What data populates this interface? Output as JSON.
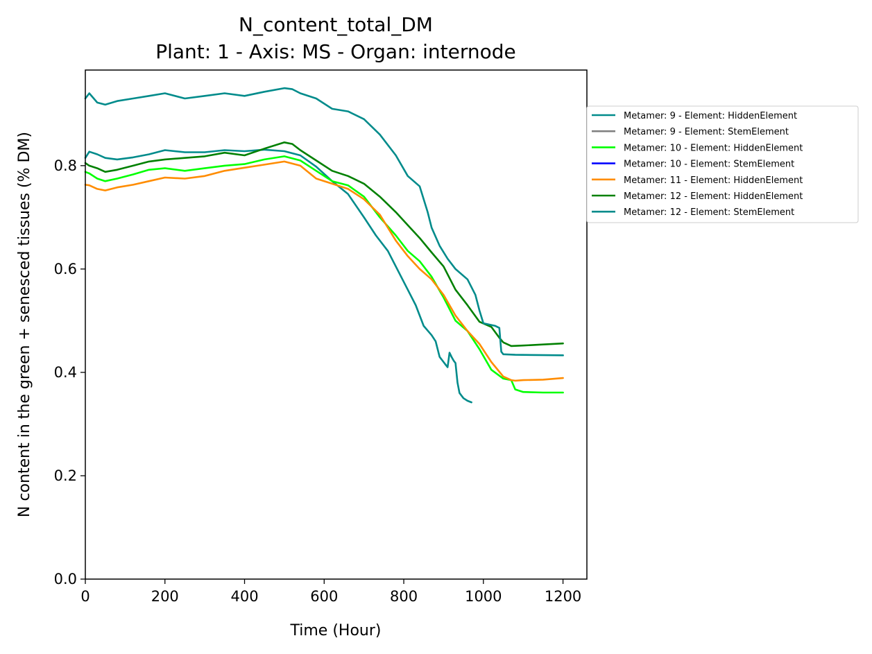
{
  "chart_data": {
    "type": "line",
    "title": "N_content_total_DM",
    "subtitle": "Plant: 1 - Axis: MS - Organ: internode",
    "xlabel": "Time (Hour)",
    "ylabel": "N content in the green + senesced tissues (% DM)",
    "xlim": [
      0,
      1260
    ],
    "ylim": [
      0,
      0.985
    ],
    "xticks": [
      0,
      200,
      400,
      600,
      800,
      1000,
      1200
    ],
    "yticks": [
      0.0,
      0.2,
      0.4,
      0.6,
      0.8
    ],
    "xtick_labels": [
      "0",
      "200",
      "400",
      "600",
      "800",
      "1000",
      "1200"
    ],
    "ytick_labels": [
      "0.0",
      "0.2",
      "0.4",
      "0.6",
      "0.8"
    ],
    "grid": false,
    "legend_position": "outside-right",
    "series": [
      {
        "name": "Metamer: 9 - Element: HiddenElement",
        "color": "#008b8b",
        "x": [
          0,
          10,
          30,
          50,
          80,
          120,
          160,
          200,
          250,
          300,
          350,
          400,
          450,
          500,
          540,
          580,
          620,
          660,
          700,
          730,
          760,
          790,
          810,
          830,
          850,
          870,
          880,
          890,
          900,
          905,
          910,
          915,
          920,
          925,
          930,
          935,
          940,
          950,
          960,
          970
        ],
        "y": [
          0.815,
          0.827,
          0.822,
          0.815,
          0.812,
          0.816,
          0.822,
          0.83,
          0.826,
          0.826,
          0.83,
          0.828,
          0.831,
          0.828,
          0.82,
          0.798,
          0.77,
          0.745,
          0.7,
          0.665,
          0.635,
          0.59,
          0.56,
          0.53,
          0.49,
          0.472,
          0.46,
          0.43,
          0.42,
          0.415,
          0.41,
          0.438,
          0.43,
          0.423,
          0.418,
          0.38,
          0.36,
          0.35,
          0.345,
          0.342
        ]
      },
      {
        "name": "Metamer: 9 - Element: StemElement",
        "color": "#808080",
        "x": [],
        "y": []
      },
      {
        "name": "Metamer: 10 - Element: HiddenElement",
        "color": "#00ff00",
        "x": [
          0,
          10,
          30,
          50,
          80,
          120,
          160,
          200,
          250,
          300,
          350,
          400,
          450,
          500,
          540,
          580,
          620,
          660,
          700,
          740,
          780,
          810,
          840,
          870,
          900,
          930,
          960,
          990,
          1020,
          1050,
          1070,
          1080,
          1100,
          1150,
          1200
        ],
        "y": [
          0.788,
          0.785,
          0.775,
          0.77,
          0.775,
          0.783,
          0.792,
          0.795,
          0.79,
          0.795,
          0.8,
          0.803,
          0.812,
          0.818,
          0.81,
          0.79,
          0.77,
          0.762,
          0.74,
          0.7,
          0.665,
          0.635,
          0.615,
          0.585,
          0.545,
          0.5,
          0.48,
          0.445,
          0.405,
          0.388,
          0.385,
          0.367,
          0.362,
          0.361,
          0.361
        ]
      },
      {
        "name": "Metamer: 10 - Element: StemElement",
        "color": "#0000ff",
        "x": [],
        "y": []
      },
      {
        "name": "Metamer: 11 - Element: HiddenElement",
        "color": "#ff8c00",
        "x": [
          0,
          10,
          30,
          50,
          80,
          120,
          160,
          200,
          250,
          300,
          350,
          400,
          450,
          500,
          540,
          580,
          620,
          660,
          700,
          740,
          780,
          810,
          840,
          870,
          900,
          930,
          960,
          990,
          1020,
          1050,
          1070,
          1080,
          1100,
          1150,
          1200
        ],
        "y": [
          0.763,
          0.762,
          0.755,
          0.752,
          0.758,
          0.763,
          0.77,
          0.777,
          0.775,
          0.78,
          0.79,
          0.796,
          0.802,
          0.808,
          0.8,
          0.775,
          0.765,
          0.755,
          0.735,
          0.705,
          0.655,
          0.625,
          0.6,
          0.58,
          0.55,
          0.51,
          0.48,
          0.455,
          0.42,
          0.392,
          0.385,
          0.384,
          0.385,
          0.386,
          0.389
        ]
      },
      {
        "name": "Metamer: 12 - Element: HiddenElement",
        "color": "#008000",
        "x": [
          0,
          10,
          30,
          50,
          80,
          120,
          160,
          200,
          250,
          300,
          350,
          400,
          450,
          500,
          520,
          540,
          580,
          620,
          660,
          700,
          740,
          780,
          810,
          840,
          870,
          900,
          930,
          960,
          990,
          1020,
          1040,
          1050,
          1070,
          1100,
          1150,
          1200
        ],
        "y": [
          0.805,
          0.8,
          0.795,
          0.788,
          0.792,
          0.8,
          0.808,
          0.812,
          0.815,
          0.818,
          0.825,
          0.82,
          0.833,
          0.845,
          0.842,
          0.83,
          0.81,
          0.79,
          0.78,
          0.765,
          0.74,
          0.71,
          0.685,
          0.66,
          0.632,
          0.605,
          0.56,
          0.53,
          0.498,
          0.488,
          0.467,
          0.458,
          0.451,
          0.452,
          0.454,
          0.456
        ]
      },
      {
        "name": "Metamer: 12 - Element: StemElement",
        "color": "#008b8b",
        "x": [
          0,
          10,
          30,
          50,
          80,
          120,
          160,
          200,
          250,
          300,
          350,
          400,
          450,
          500,
          520,
          540,
          580,
          620,
          660,
          700,
          740,
          780,
          810,
          840,
          860,
          870,
          890,
          910,
          930,
          960,
          980,
          990,
          1000,
          1030,
          1040,
          1045,
          1050,
          1080,
          1200
        ],
        "y": [
          0.93,
          0.94,
          0.922,
          0.918,
          0.925,
          0.93,
          0.935,
          0.94,
          0.93,
          0.935,
          0.94,
          0.935,
          0.943,
          0.95,
          0.948,
          0.94,
          0.93,
          0.91,
          0.905,
          0.89,
          0.86,
          0.82,
          0.78,
          0.76,
          0.71,
          0.68,
          0.645,
          0.62,
          0.6,
          0.58,
          0.55,
          0.52,
          0.495,
          0.49,
          0.486,
          0.44,
          0.435,
          0.434,
          0.433
        ]
      }
    ]
  }
}
